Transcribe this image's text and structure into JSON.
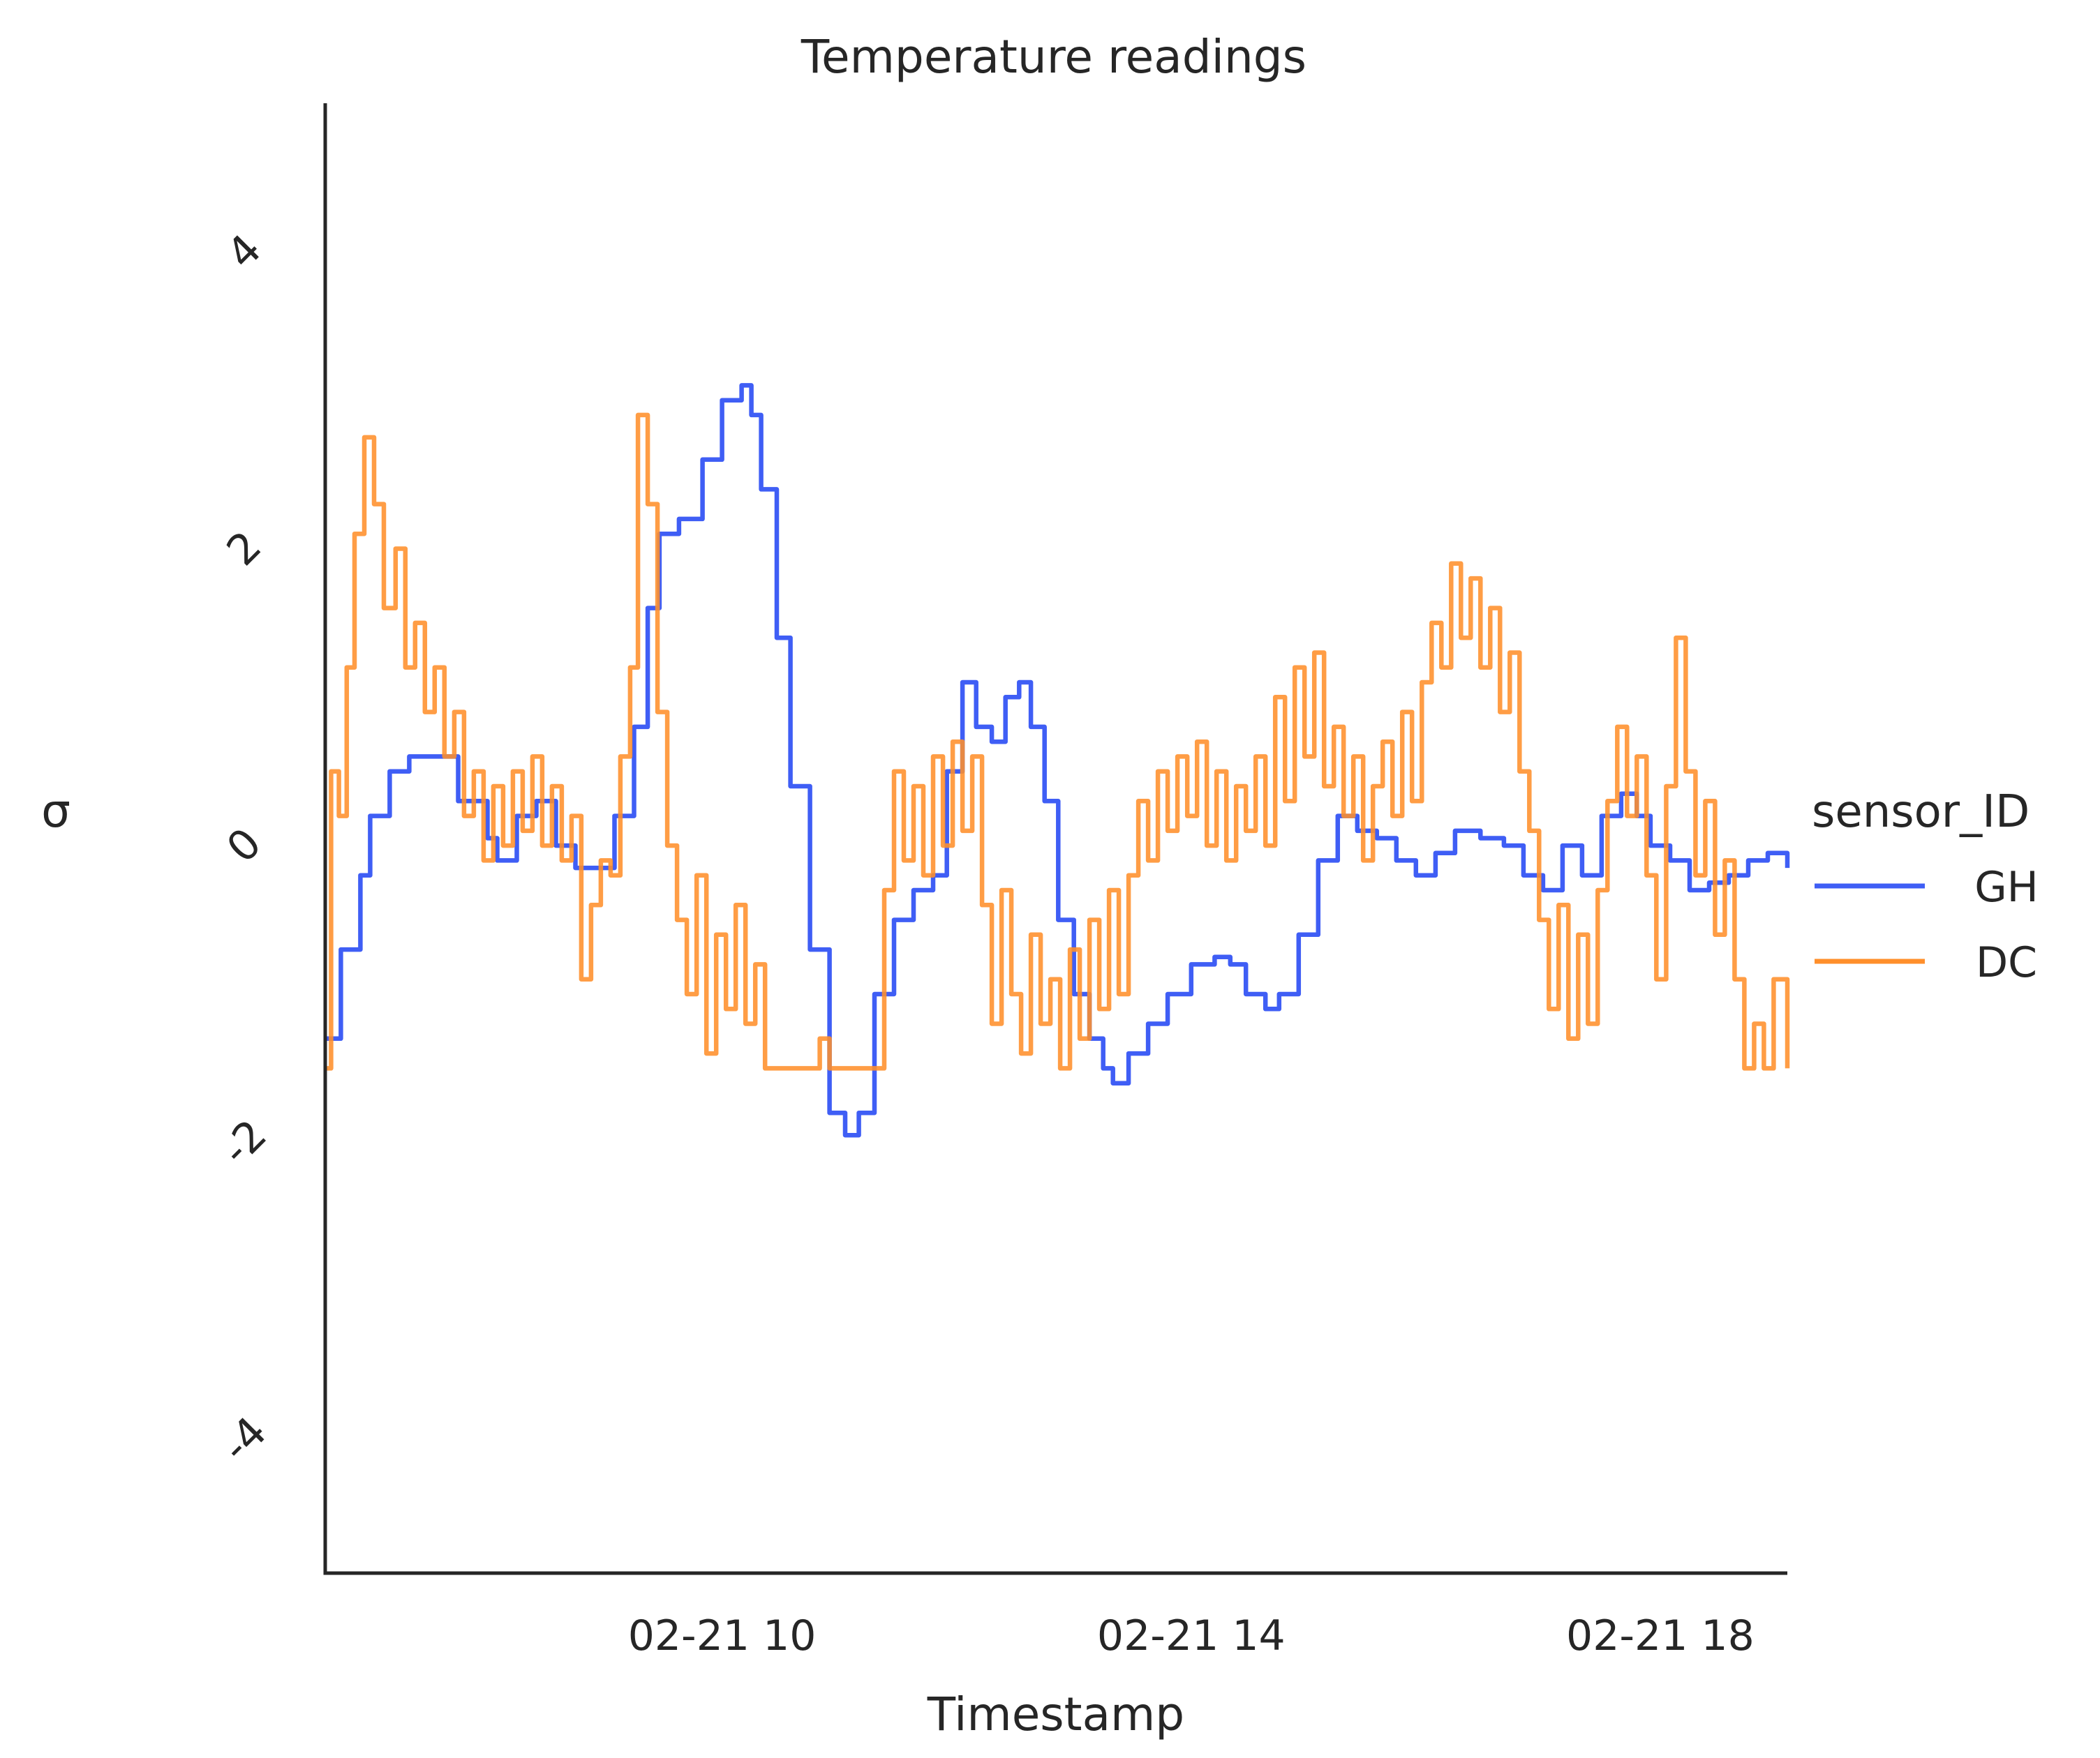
{
  "chart_data": {
    "type": "line",
    "title": "Temperature readings",
    "xlabel": "Timestamp",
    "ylabel": "σ",
    "x_range": [
      "02-21 06:37",
      "02-21 19:05"
    ],
    "xticks": [
      {
        "label": "02-21 10",
        "value": "02-21 10:00"
      },
      {
        "label": "02-21 14",
        "value": "02-21 14:00"
      },
      {
        "label": "02-21 18",
        "value": "02-21 18:00"
      }
    ],
    "ylim": [
      -4.9,
      5.0
    ],
    "yticks": [
      {
        "label": "-4",
        "value": -4
      },
      {
        "label": "-2",
        "value": -2
      },
      {
        "label": "0",
        "value": 0
      },
      {
        "label": "2",
        "value": 2
      },
      {
        "label": "4",
        "value": 4
      }
    ],
    "grid": false,
    "legend": {
      "title": "sensor_ID",
      "placement": "right"
    },
    "series": [
      {
        "name": "GH",
        "color": "#3f5ef5",
        "points": [
          [
            "02-21 06:37",
            -1.3
          ],
          [
            "02-21 06:45",
            -0.7
          ],
          [
            "02-21 06:55",
            -0.2
          ],
          [
            "02-21 07:00",
            0.2
          ],
          [
            "02-21 07:10",
            0.5
          ],
          [
            "02-21 07:20",
            0.6
          ],
          [
            "02-21 07:32",
            0.6
          ],
          [
            "02-21 07:45",
            0.3
          ],
          [
            "02-21 08:00",
            0.05
          ],
          [
            "02-21 08:05",
            -0.1
          ],
          [
            "02-21 08:15",
            0.2
          ],
          [
            "02-21 08:25",
            0.3
          ],
          [
            "02-21 08:35",
            0.0
          ],
          [
            "02-21 08:45",
            -0.15
          ],
          [
            "02-21 08:55",
            -0.15
          ],
          [
            "02-21 09:05",
            0.2
          ],
          [
            "02-21 09:15",
            0.8
          ],
          [
            "02-21 09:22",
            1.6
          ],
          [
            "02-21 09:28",
            2.1
          ],
          [
            "02-21 09:38",
            2.2
          ],
          [
            "02-21 09:50",
            2.6
          ],
          [
            "02-21 10:00",
            3.0
          ],
          [
            "02-21 10:10",
            3.1
          ],
          [
            "02-21 10:15",
            2.9
          ],
          [
            "02-21 10:20",
            2.4
          ],
          [
            "02-21 10:28",
            1.4
          ],
          [
            "02-21 10:35",
            0.4
          ],
          [
            "02-21 10:45",
            -0.7
          ],
          [
            "02-21 10:55",
            -1.8
          ],
          [
            "02-21 11:03",
            -1.95
          ],
          [
            "02-21 11:10",
            -1.8
          ],
          [
            "02-21 11:18",
            -1.0
          ],
          [
            "02-21 11:28",
            -0.5
          ],
          [
            "02-21 11:38",
            -0.3
          ],
          [
            "02-21 11:48",
            -0.2
          ],
          [
            "02-21 11:55",
            0.5
          ],
          [
            "02-21 12:03",
            1.1
          ],
          [
            "02-21 12:10",
            0.8
          ],
          [
            "02-21 12:18",
            0.7
          ],
          [
            "02-21 12:25",
            1.0
          ],
          [
            "02-21 12:32",
            1.1
          ],
          [
            "02-21 12:38",
            0.8
          ],
          [
            "02-21 12:45",
            0.3
          ],
          [
            "02-21 12:52",
            -0.5
          ],
          [
            "02-21 13:00",
            -1.0
          ],
          [
            "02-21 13:08",
            -1.3
          ],
          [
            "02-21 13:15",
            -1.5
          ],
          [
            "02-21 13:20",
            -1.6
          ],
          [
            "02-21 13:28",
            -1.4
          ],
          [
            "02-21 13:38",
            -1.2
          ],
          [
            "02-21 13:48",
            -1.0
          ],
          [
            "02-21 14:00",
            -0.8
          ],
          [
            "02-21 14:12",
            -0.75
          ],
          [
            "02-21 14:20",
            -0.8
          ],
          [
            "02-21 14:28",
            -1.0
          ],
          [
            "02-21 14:38",
            -1.1
          ],
          [
            "02-21 14:45",
            -1.0
          ],
          [
            "02-21 14:55",
            -0.6
          ],
          [
            "02-21 15:05",
            -0.1
          ],
          [
            "02-21 15:15",
            0.2
          ],
          [
            "02-21 15:25",
            0.1
          ],
          [
            "02-21 15:35",
            0.05
          ],
          [
            "02-21 15:45",
            -0.1
          ],
          [
            "02-21 15:55",
            -0.2
          ],
          [
            "02-21 16:05",
            -0.05
          ],
          [
            "02-21 16:15",
            0.1
          ],
          [
            "02-21 16:28",
            0.05
          ],
          [
            "02-21 16:40",
            0.0
          ],
          [
            "02-21 16:50",
            -0.2
          ],
          [
            "02-21 17:00",
            -0.3
          ],
          [
            "02-21 17:10",
            0.0
          ],
          [
            "02-21 17:20",
            -0.2
          ],
          [
            "02-21 17:30",
            0.2
          ],
          [
            "02-21 17:40",
            0.35
          ],
          [
            "02-21 17:48",
            0.2
          ],
          [
            "02-21 17:55",
            0.0
          ],
          [
            "02-21 18:05",
            -0.1
          ],
          [
            "02-21 18:15",
            -0.3
          ],
          [
            "02-21 18:25",
            -0.25
          ],
          [
            "02-21 18:35",
            -0.2
          ],
          [
            "02-21 18:45",
            -0.1
          ],
          [
            "02-21 18:55",
            -0.05
          ],
          [
            "02-21 19:05",
            -0.15
          ]
        ]
      },
      {
        "name": "DC",
        "color": "#ff8f2b",
        "points": [
          [
            "02-21 06:37",
            -1.5
          ],
          [
            "02-21 06:40",
            0.5
          ],
          [
            "02-21 06:44",
            0.2
          ],
          [
            "02-21 06:48",
            1.2
          ],
          [
            "02-21 06:52",
            2.1
          ],
          [
            "02-21 06:57",
            2.75
          ],
          [
            "02-21 07:02",
            2.3
          ],
          [
            "02-21 07:07",
            1.6
          ],
          [
            "02-21 07:13",
            2.0
          ],
          [
            "02-21 07:18",
            1.2
          ],
          [
            "02-21 07:23",
            1.5
          ],
          [
            "02-21 07:28",
            0.9
          ],
          [
            "02-21 07:33",
            1.2
          ],
          [
            "02-21 07:38",
            0.6
          ],
          [
            "02-21 07:43",
            0.9
          ],
          [
            "02-21 07:48",
            0.2
          ],
          [
            "02-21 07:53",
            0.5
          ],
          [
            "02-21 07:58",
            -0.1
          ],
          [
            "02-21 08:03",
            0.4
          ],
          [
            "02-21 08:08",
            0.0
          ],
          [
            "02-21 08:13",
            0.5
          ],
          [
            "02-21 08:18",
            0.1
          ],
          [
            "02-21 08:23",
            0.6
          ],
          [
            "02-21 08:28",
            0.0
          ],
          [
            "02-21 08:33",
            0.4
          ],
          [
            "02-21 08:38",
            -0.1
          ],
          [
            "02-21 08:43",
            0.2
          ],
          [
            "02-21 08:48",
            -0.9
          ],
          [
            "02-21 08:53",
            -0.4
          ],
          [
            "02-21 08:58",
            -0.1
          ],
          [
            "02-21 09:03",
            -0.2
          ],
          [
            "02-21 09:08",
            0.6
          ],
          [
            "02-21 09:13",
            1.2
          ],
          [
            "02-21 09:17",
            2.9
          ],
          [
            "02-21 09:22",
            2.3
          ],
          [
            "02-21 09:27",
            0.9
          ],
          [
            "02-21 09:32",
            0.0
          ],
          [
            "02-21 09:37",
            -0.5
          ],
          [
            "02-21 09:42",
            -1.0
          ],
          [
            "02-21 09:47",
            -0.2
          ],
          [
            "02-21 09:52",
            -1.4
          ],
          [
            "02-21 09:57",
            -0.6
          ],
          [
            "02-21 10:02",
            -1.1
          ],
          [
            "02-21 10:07",
            -0.4
          ],
          [
            "02-21 10:12",
            -1.2
          ],
          [
            "02-21 10:17",
            -0.8
          ],
          [
            "02-21 10:22",
            -1.5
          ],
          [
            "02-21 10:35",
            -1.5
          ],
          [
            "02-21 10:45",
            -1.5
          ],
          [
            "02-21 10:50",
            -1.3
          ],
          [
            "02-21 10:55",
            -1.5
          ],
          [
            "02-21 11:00",
            -1.5
          ],
          [
            "02-21 11:10",
            -1.5
          ],
          [
            "02-21 11:20",
            -1.5
          ],
          [
            "02-21 11:23",
            -0.3
          ],
          [
            "02-21 11:28",
            0.5
          ],
          [
            "02-21 11:33",
            -0.1
          ],
          [
            "02-21 11:38",
            0.4
          ],
          [
            "02-21 11:43",
            -0.2
          ],
          [
            "02-21 11:48",
            0.6
          ],
          [
            "02-21 11:53",
            0.0
          ],
          [
            "02-21 11:58",
            0.7
          ],
          [
            "02-21 12:03",
            0.1
          ],
          [
            "02-21 12:08",
            0.6
          ],
          [
            "02-21 12:13",
            -0.4
          ],
          [
            "02-21 12:18",
            -1.2
          ],
          [
            "02-21 12:23",
            -0.3
          ],
          [
            "02-21 12:28",
            -1.0
          ],
          [
            "02-21 12:33",
            -1.4
          ],
          [
            "02-21 12:38",
            -0.6
          ],
          [
            "02-21 12:43",
            -1.2
          ],
          [
            "02-21 12:48",
            -0.9
          ],
          [
            "02-21 12:53",
            -1.5
          ],
          [
            "02-21 12:58",
            -0.7
          ],
          [
            "02-21 13:03",
            -1.3
          ],
          [
            "02-21 13:08",
            -0.5
          ],
          [
            "02-21 13:13",
            -1.1
          ],
          [
            "02-21 13:18",
            -0.3
          ],
          [
            "02-21 13:23",
            -1.0
          ],
          [
            "02-21 13:28",
            -0.2
          ],
          [
            "02-21 13:33",
            0.3
          ],
          [
            "02-21 13:38",
            -0.1
          ],
          [
            "02-21 13:43",
            0.5
          ],
          [
            "02-21 13:48",
            0.1
          ],
          [
            "02-21 13:53",
            0.6
          ],
          [
            "02-21 13:58",
            0.2
          ],
          [
            "02-21 14:03",
            0.7
          ],
          [
            "02-21 14:08",
            0.0
          ],
          [
            "02-21 14:13",
            0.5
          ],
          [
            "02-21 14:18",
            -0.1
          ],
          [
            "02-21 14:23",
            0.4
          ],
          [
            "02-21 14:28",
            0.1
          ],
          [
            "02-21 14:33",
            0.6
          ],
          [
            "02-21 14:38",
            0.0
          ],
          [
            "02-21 14:43",
            1.0
          ],
          [
            "02-21 14:48",
            0.3
          ],
          [
            "02-21 14:53",
            1.2
          ],
          [
            "02-21 14:58",
            0.6
          ],
          [
            "02-21 15:03",
            1.3
          ],
          [
            "02-21 15:08",
            0.4
          ],
          [
            "02-21 15:13",
            0.8
          ],
          [
            "02-21 15:18",
            0.2
          ],
          [
            "02-21 15:23",
            0.6
          ],
          [
            "02-21 15:28",
            -0.1
          ],
          [
            "02-21 15:33",
            0.4
          ],
          [
            "02-21 15:38",
            0.7
          ],
          [
            "02-21 15:43",
            0.2
          ],
          [
            "02-21 15:48",
            0.9
          ],
          [
            "02-21 15:53",
            0.3
          ],
          [
            "02-21 15:58",
            1.1
          ],
          [
            "02-21 16:03",
            1.5
          ],
          [
            "02-21 16:08",
            1.2
          ],
          [
            "02-21 16:13",
            1.9
          ],
          [
            "02-21 16:18",
            1.4
          ],
          [
            "02-21 16:23",
            1.8
          ],
          [
            "02-21 16:28",
            1.2
          ],
          [
            "02-21 16:33",
            1.6
          ],
          [
            "02-21 16:38",
            0.9
          ],
          [
            "02-21 16:43",
            1.3
          ],
          [
            "02-21 16:48",
            0.5
          ],
          [
            "02-21 16:53",
            0.1
          ],
          [
            "02-21 16:58",
            -0.5
          ],
          [
            "02-21 17:03",
            -1.1
          ],
          [
            "02-21 17:08",
            -0.4
          ],
          [
            "02-21 17:13",
            -1.3
          ],
          [
            "02-21 17:18",
            -0.6
          ],
          [
            "02-21 17:23",
            -1.2
          ],
          [
            "02-21 17:28",
            -0.3
          ],
          [
            "02-21 17:33",
            0.3
          ],
          [
            "02-21 17:38",
            0.8
          ],
          [
            "02-21 17:43",
            0.2
          ],
          [
            "02-21 17:48",
            0.6
          ],
          [
            "02-21 17:53",
            -0.2
          ],
          [
            "02-21 17:58",
            -0.9
          ],
          [
            "02-21 18:03",
            0.4
          ],
          [
            "02-21 18:08",
            1.4
          ],
          [
            "02-21 18:13",
            0.5
          ],
          [
            "02-21 18:18",
            -0.2
          ],
          [
            "02-21 18:23",
            0.3
          ],
          [
            "02-21 18:28",
            -0.6
          ],
          [
            "02-21 18:33",
            -0.1
          ],
          [
            "02-21 18:38",
            -0.9
          ],
          [
            "02-21 18:43",
            -1.5
          ],
          [
            "02-21 18:48",
            -1.2
          ],
          [
            "02-21 18:53",
            -1.5
          ],
          [
            "02-21 18:58",
            -0.9
          ],
          [
            "02-21 19:05",
            -1.5
          ]
        ]
      }
    ]
  }
}
